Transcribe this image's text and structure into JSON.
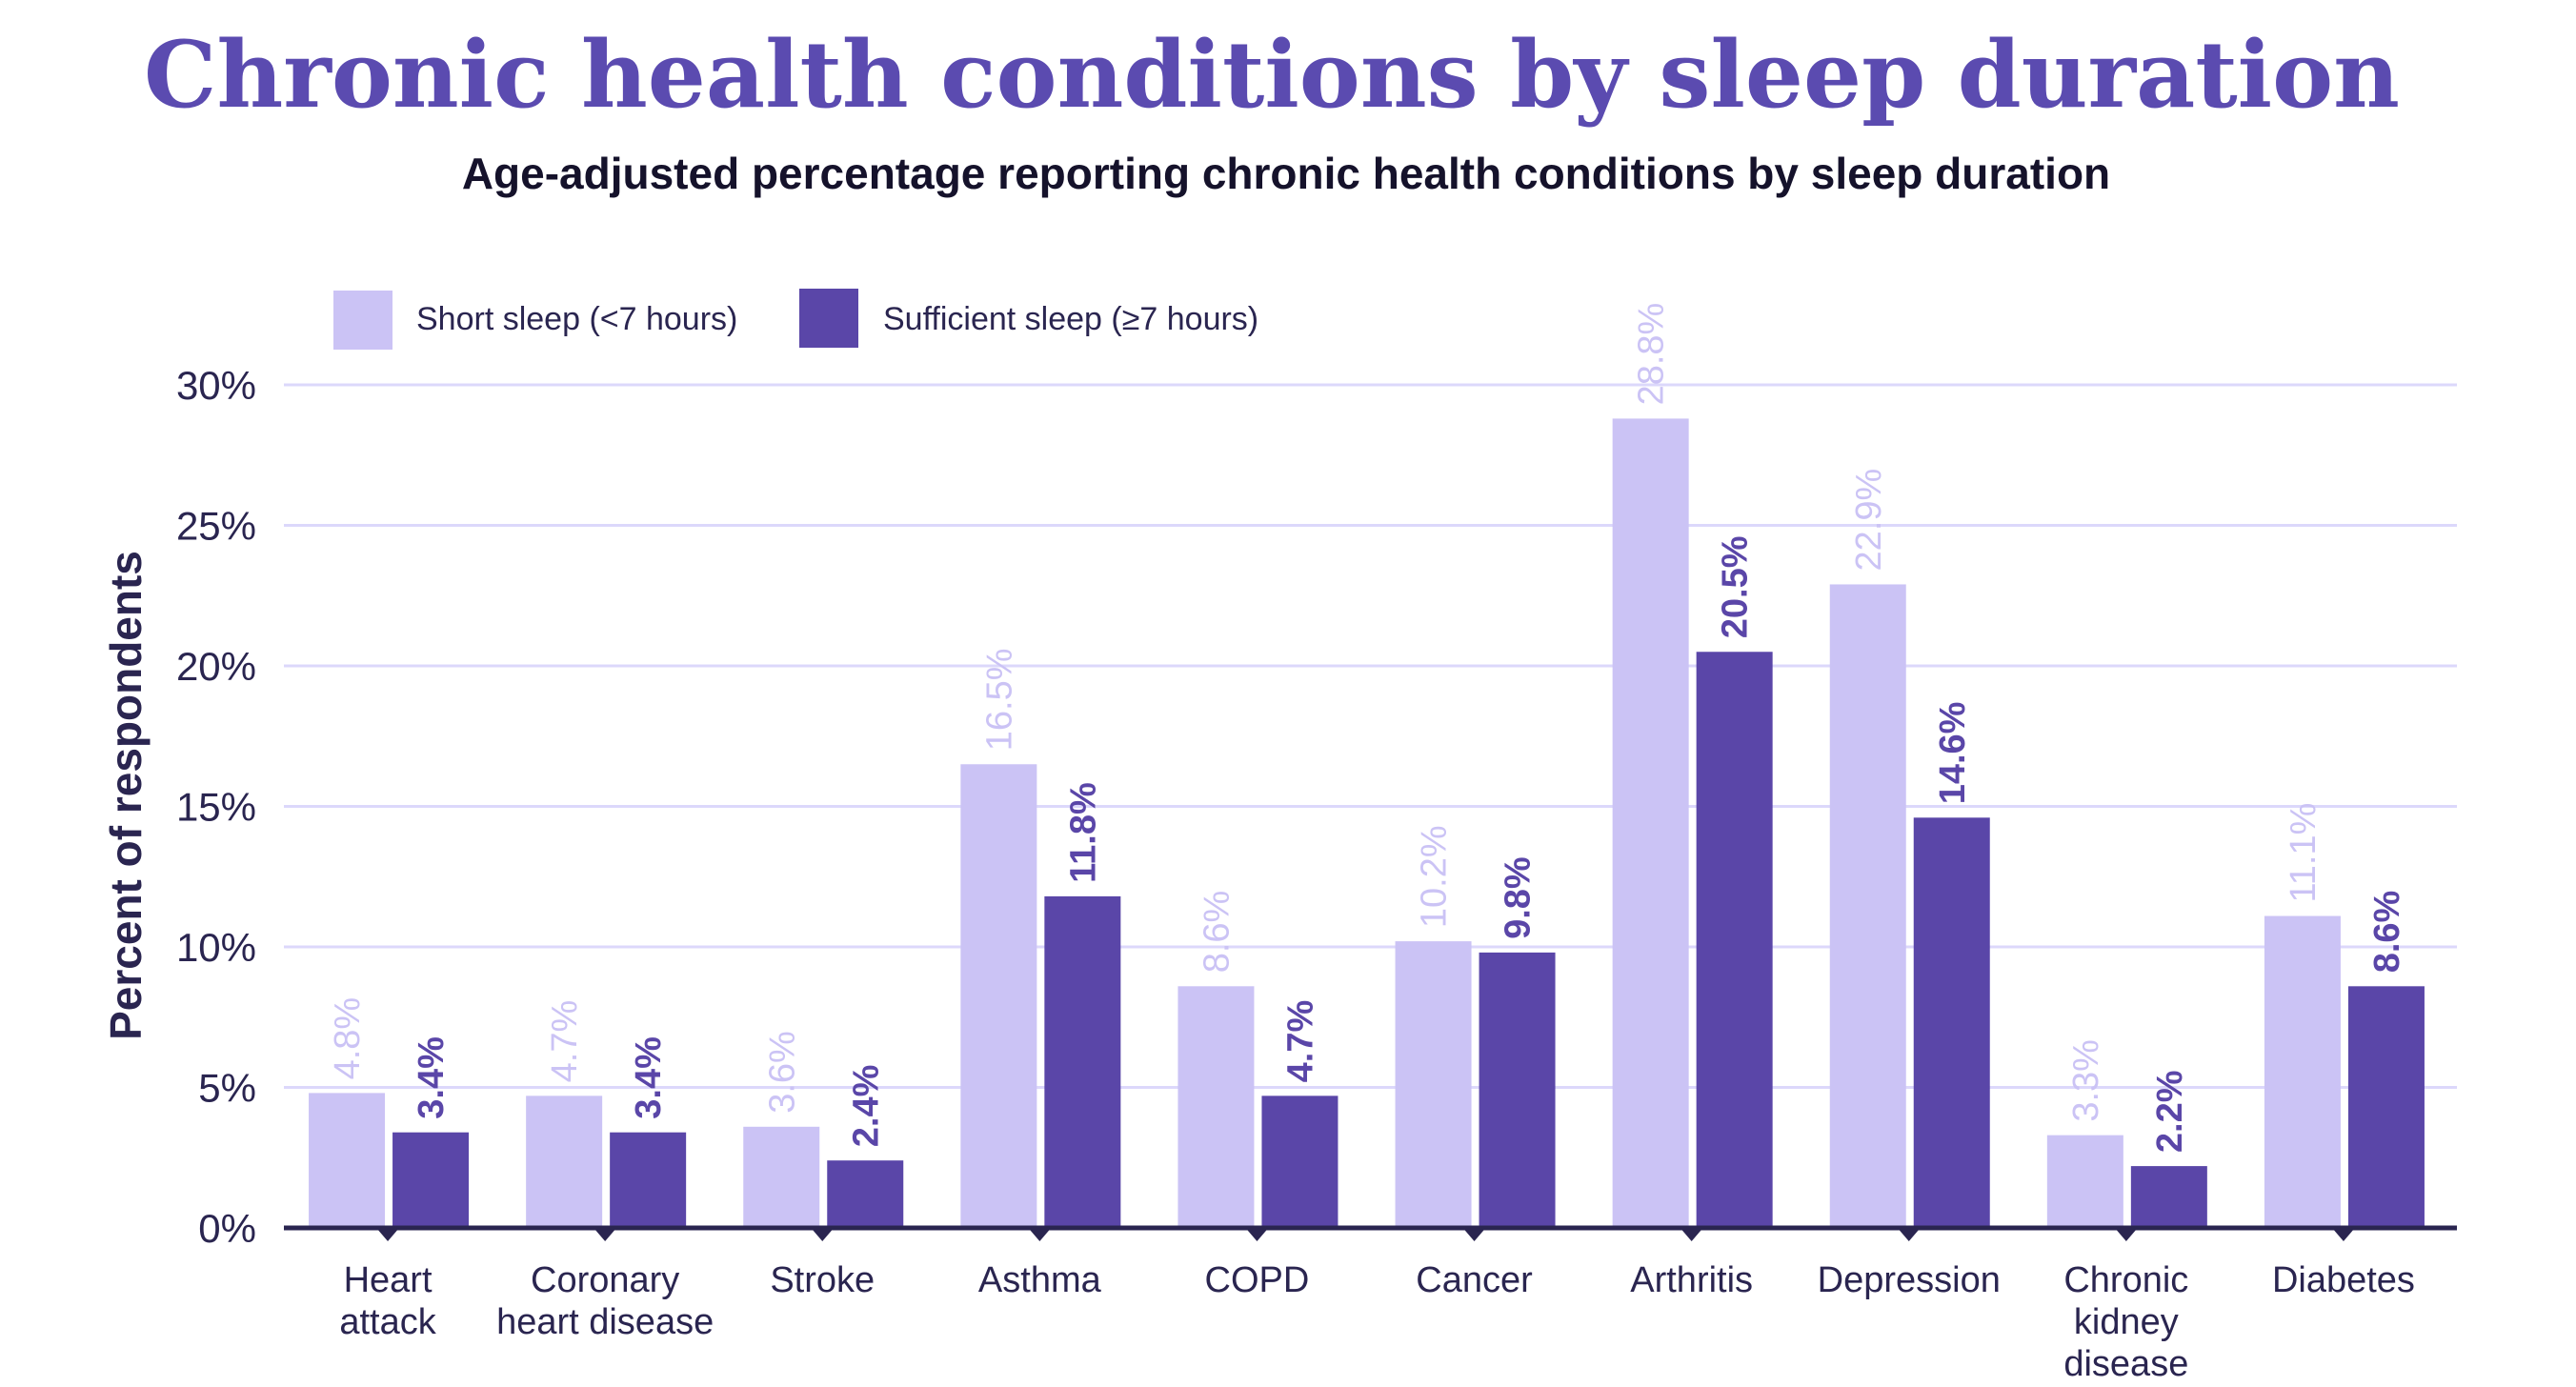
{
  "colors": {
    "title": "#5b4bb0",
    "short": "#cbc3f5",
    "sufficient": "#5a46a8",
    "grid": "#dcd8fb",
    "axis": "#2a2550"
  },
  "chart_data": {
    "type": "bar",
    "title": "Chronic health conditions by sleep duration",
    "subtitle": "Age-adjusted percentage reporting chronic health conditions by sleep duration",
    "xlabel": "",
    "ylabel": "Percent of respondents",
    "ylim": [
      0,
      30
    ],
    "yticks": [
      "0%",
      "5%",
      "10%",
      "15%",
      "20%",
      "25%",
      "30%"
    ],
    "grid": true,
    "legend_position": "top-left",
    "categories": [
      [
        "Heart",
        "attack"
      ],
      [
        "Coronary",
        "heart disease"
      ],
      [
        "Stroke"
      ],
      [
        "Asthma"
      ],
      [
        "COPD"
      ],
      [
        "Cancer"
      ],
      [
        "Arthritis"
      ],
      [
        "Depression"
      ],
      [
        "Chronic",
        "kidney",
        "disease"
      ],
      [
        "Diabetes"
      ]
    ],
    "series": [
      {
        "name": "Short sleep (<7 hours)",
        "values": [
          4.8,
          4.7,
          3.6,
          16.5,
          8.6,
          10.2,
          28.8,
          22.9,
          3.3,
          11.1
        ],
        "labels": [
          "4.8%",
          "4.7%",
          "3.6%",
          "16.5%",
          "8.6%",
          "10.2%",
          "28.8%",
          "22.9%",
          "3.3%",
          "11.1%"
        ]
      },
      {
        "name": "Sufficient sleep (≥7 hours)",
        "values": [
          3.4,
          3.4,
          2.4,
          11.8,
          4.7,
          9.8,
          20.5,
          14.6,
          2.2,
          8.6
        ],
        "labels": [
          "3.4%",
          "3.4%",
          "2.4%",
          "11.8%",
          "4.7%",
          "9.8%",
          "20.5%",
          "14.6%",
          "2.2%",
          "8.6%"
        ]
      }
    ]
  }
}
